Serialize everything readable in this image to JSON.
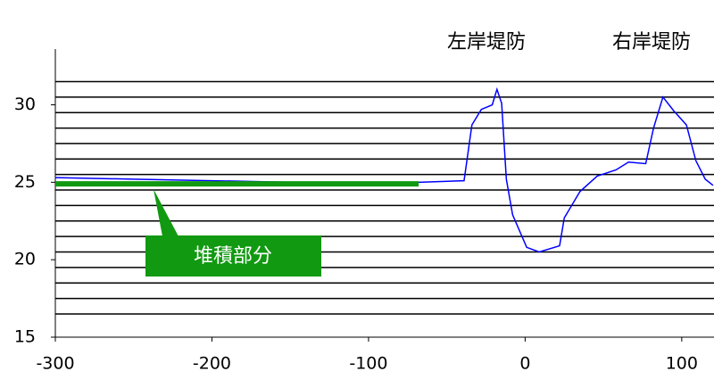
{
  "chart_data": {
    "type": "line",
    "xlim": [
      -300,
      120.6
    ],
    "ylim": [
      15,
      33.6
    ],
    "xticks": [
      -300,
      -200,
      -100,
      0,
      100
    ],
    "yticks": [
      15,
      20,
      25,
      30
    ],
    "hlines": [
      16.5,
      17.5,
      18.5,
      19.5,
      20.5,
      21.5,
      22.5,
      23.5,
      24.5,
      25.5,
      26.5,
      27.5,
      28.5,
      29.5,
      30.5,
      31.5
    ],
    "series": [
      {
        "color": "#0000ff",
        "x": [
          -300,
          -250,
          -150,
          -68,
          -39,
          -34,
          -28,
          -21,
          -18,
          -15,
          -12,
          -8,
          1,
          9,
          22,
          25,
          35,
          46,
          58,
          66,
          77,
          82,
          88,
          95,
          103,
          109,
          115,
          120
        ],
        "values": [
          25.3,
          25.2,
          25.0,
          25.0,
          25.1,
          28.7,
          29.7,
          30.0,
          31.0,
          30.1,
          25.2,
          22.9,
          20.8,
          20.5,
          20.9,
          22.7,
          24.4,
          25.4,
          25.8,
          26.3,
          26.2,
          28.5,
          30.5,
          29.6,
          28.7,
          26.4,
          25.2,
          24.8
        ]
      },
      {
        "color": "#119911",
        "width": 6,
        "x": [
          -300,
          -68
        ],
        "values": [
          24.9,
          24.9
        ]
      }
    ],
    "annotations": [
      "左岸堤防",
      "右岸堤防",
      "堆積部分"
    ]
  }
}
